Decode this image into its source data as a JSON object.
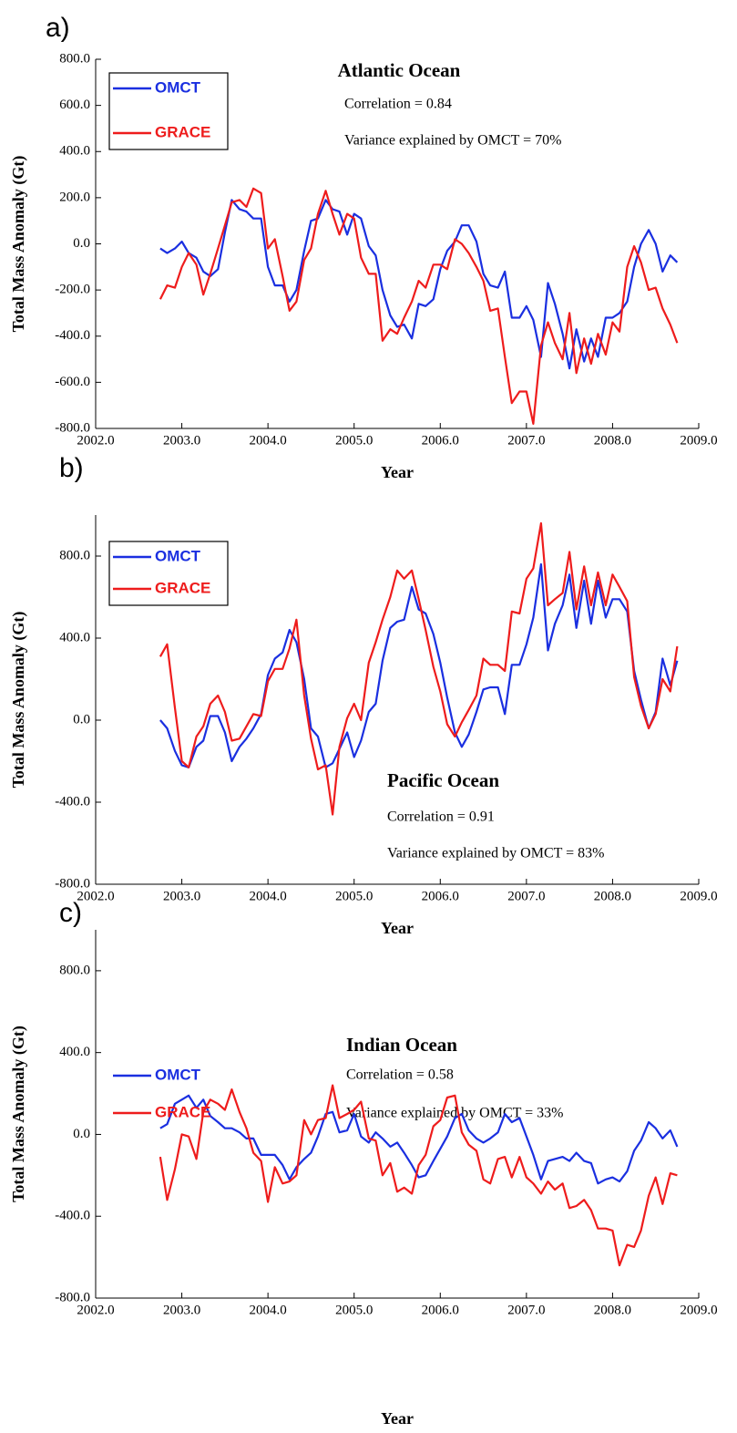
{
  "chart_data": [
    {
      "type": "line",
      "label": "a)",
      "title": "Atlantic Ocean",
      "annotations": [
        "Correlation = 0.84",
        "Variance explained by OMCT = 70%"
      ],
      "x_label": "Year",
      "y_label": "Total Mass Anomaly (Gt)",
      "xlim": [
        2002,
        2009
      ],
      "xticks": [
        {
          "value": 2002,
          "label": "2002.0"
        },
        {
          "value": 2003,
          "label": "2003.0"
        },
        {
          "value": 2004,
          "label": "2004.0"
        },
        {
          "value": 2005,
          "label": "2005.0"
        },
        {
          "value": 2006,
          "label": "2006.0"
        },
        {
          "value": 2007,
          "label": "2007.0"
        },
        {
          "value": 2008,
          "label": "2008.0"
        },
        {
          "value": 2009,
          "label": "2009.0"
        }
      ],
      "ylim": [
        -800,
        800
      ],
      "yticks": [
        {
          "value": -800,
          "label": "-800.0"
        },
        {
          "value": -600,
          "label": "-600.0"
        },
        {
          "value": -400,
          "label": "-400.0"
        },
        {
          "value": -200,
          "label": "-200.0"
        },
        {
          "value": 0,
          "label": "0.0"
        },
        {
          "value": 200,
          "label": "200.0"
        },
        {
          "value": 400,
          "label": "400.0"
        },
        {
          "value": 600,
          "label": "600.0"
        },
        {
          "value": 800,
          "label": "800.0"
        }
      ],
      "legend_box": true,
      "x": [
        2002.75,
        2002.83,
        2002.92,
        2003.0,
        2003.08,
        2003.17,
        2003.25,
        2003.33,
        2003.42,
        2003.5,
        2003.58,
        2003.67,
        2003.75,
        2003.83,
        2003.92,
        2004.0,
        2004.08,
        2004.17,
        2004.25,
        2004.33,
        2004.42,
        2004.5,
        2004.58,
        2004.67,
        2004.75,
        2004.83,
        2004.92,
        2005.0,
        2005.08,
        2005.17,
        2005.25,
        2005.33,
        2005.42,
        2005.5,
        2005.58,
        2005.67,
        2005.75,
        2005.83,
        2005.92,
        2006.0,
        2006.08,
        2006.17,
        2006.25,
        2006.33,
        2006.42,
        2006.5,
        2006.58,
        2006.67,
        2006.75,
        2006.83,
        2006.92,
        2007.0,
        2007.08,
        2007.17,
        2007.25,
        2007.33,
        2007.42,
        2007.5,
        2007.58,
        2007.67,
        2007.75,
        2007.83,
        2007.92,
        2008.0,
        2008.08,
        2008.17,
        2008.25,
        2008.33,
        2008.42,
        2008.5,
        2008.58,
        2008.67,
        2008.75
      ],
      "series": [
        {
          "name": "OMCT",
          "color": "#1a2fe0",
          "values": [
            -20,
            -40,
            -20,
            10,
            -40,
            -60,
            -120,
            -140,
            -110,
            50,
            190,
            150,
            140,
            110,
            110,
            -100,
            -180,
            -180,
            -250,
            -200,
            -30,
            100,
            110,
            190,
            150,
            140,
            40,
            130,
            110,
            -10,
            -50,
            -200,
            -310,
            -360,
            -350,
            -410,
            -260,
            -270,
            -240,
            -110,
            -30,
            10,
            80,
            80,
            10,
            -130,
            -180,
            -190,
            -120,
            -320,
            -320,
            -270,
            -330,
            -490,
            -170,
            -260,
            -390,
            -540,
            -370,
            -510,
            -410,
            -490,
            -320,
            -320,
            -300,
            -250,
            -100,
            0,
            60,
            0,
            -120,
            -50,
            -80
          ]
        },
        {
          "name": "GRACE",
          "color": "#ee1c1c",
          "values": [
            -240,
            -180,
            -190,
            -100,
            -40,
            -90,
            -220,
            -130,
            -20,
            80,
            180,
            190,
            160,
            240,
            220,
            -20,
            20,
            -140,
            -290,
            -250,
            -70,
            -20,
            130,
            230,
            130,
            40,
            130,
            110,
            -60,
            -130,
            -130,
            -420,
            -370,
            -390,
            -320,
            -250,
            -160,
            -190,
            -90,
            -90,
            -110,
            20,
            0,
            -40,
            -100,
            -160,
            -290,
            -280,
            -490,
            -690,
            -640,
            -640,
            -780,
            -440,
            -340,
            -430,
            -500,
            -300,
            -560,
            -410,
            -520,
            -390,
            -480,
            -340,
            -380,
            -100,
            -10,
            -80,
            -200,
            -190,
            -280,
            -350,
            -430
          ]
        }
      ]
    },
    {
      "type": "line",
      "label": "b)",
      "title": "Pacific Ocean",
      "annotations": [
        "Correlation = 0.91",
        "Variance explained by OMCT = 83%"
      ],
      "x_label": "Year",
      "y_label": "Total Mass Anomaly (Gt)",
      "xlim": [
        2002,
        2009
      ],
      "xticks": [
        {
          "value": 2002,
          "label": "2002.0"
        },
        {
          "value": 2003,
          "label": "2003.0"
        },
        {
          "value": 2004,
          "label": "2004.0"
        },
        {
          "value": 2005,
          "label": "2005.0"
        },
        {
          "value": 2006,
          "label": "2006.0"
        },
        {
          "value": 2007,
          "label": "2007.0"
        },
        {
          "value": 2008,
          "label": "2008.0"
        },
        {
          "value": 2009,
          "label": "2009.0"
        }
      ],
      "ylim": [
        -800,
        1000
      ],
      "yticks": [
        {
          "value": -800,
          "label": "-800.0"
        },
        {
          "value": -400,
          "label": "-400.0"
        },
        {
          "value": 0,
          "label": "0.0"
        },
        {
          "value": 400,
          "label": "400.0"
        },
        {
          "value": 800,
          "label": "800.0"
        }
      ],
      "legend_box": true,
      "x": [
        2002.75,
        2002.83,
        2002.92,
        2003.0,
        2003.08,
        2003.17,
        2003.25,
        2003.33,
        2003.42,
        2003.5,
        2003.58,
        2003.67,
        2003.75,
        2003.83,
        2003.92,
        2004.0,
        2004.08,
        2004.17,
        2004.25,
        2004.33,
        2004.42,
        2004.5,
        2004.58,
        2004.67,
        2004.75,
        2004.83,
        2004.92,
        2005.0,
        2005.08,
        2005.17,
        2005.25,
        2005.33,
        2005.42,
        2005.5,
        2005.58,
        2005.67,
        2005.75,
        2005.83,
        2005.92,
        2006.0,
        2006.08,
        2006.17,
        2006.25,
        2006.33,
        2006.42,
        2006.5,
        2006.58,
        2006.67,
        2006.75,
        2006.83,
        2006.92,
        2007.0,
        2007.08,
        2007.17,
        2007.25,
        2007.33,
        2007.42,
        2007.5,
        2007.58,
        2007.67,
        2007.75,
        2007.83,
        2007.92,
        2008.0,
        2008.08,
        2008.17,
        2008.25,
        2008.33,
        2008.42,
        2008.5,
        2008.58,
        2008.67,
        2008.75
      ],
      "series": [
        {
          "name": "OMCT",
          "color": "#1a2fe0",
          "values": [
            0,
            -40,
            -150,
            -220,
            -230,
            -130,
            -100,
            20,
            20,
            -60,
            -200,
            -130,
            -90,
            -40,
            30,
            220,
            300,
            330,
            440,
            380,
            200,
            -40,
            -80,
            -230,
            -210,
            -140,
            -60,
            -180,
            -100,
            40,
            80,
            290,
            450,
            480,
            490,
            650,
            540,
            520,
            420,
            280,
            110,
            -60,
            -130,
            -70,
            40,
            150,
            160,
            160,
            30,
            270,
            270,
            370,
            500,
            760,
            340,
            470,
            560,
            710,
            450,
            680,
            470,
            680,
            500,
            590,
            590,
            530,
            240,
            100,
            -40,
            40,
            300,
            170,
            290
          ]
        },
        {
          "name": "GRACE",
          "color": "#ee1c1c",
          "values": [
            310,
            370,
            60,
            -200,
            -230,
            -80,
            -30,
            80,
            120,
            40,
            -100,
            -90,
            -30,
            30,
            20,
            190,
            250,
            250,
            350,
            490,
            120,
            -90,
            -240,
            -220,
            -460,
            -130,
            10,
            80,
            0,
            280,
            380,
            490,
            600,
            730,
            690,
            730,
            590,
            440,
            260,
            140,
            -20,
            -80,
            -10,
            50,
            120,
            300,
            270,
            270,
            240,
            530,
            520,
            690,
            740,
            960,
            560,
            590,
            620,
            820,
            540,
            750,
            560,
            720,
            560,
            710,
            650,
            580,
            210,
            70,
            -40,
            30,
            200,
            140,
            360
          ]
        }
      ]
    },
    {
      "type": "line",
      "label": "c)",
      "title": "Indian Ocean",
      "annotations": [
        "Correlation = 0.58",
        "Variance explained by OMCT = 33%"
      ],
      "x_label": "Year",
      "y_label": "Total Mass Anomaly (Gt)",
      "xlim": [
        2002,
        2009
      ],
      "xticks": [
        {
          "value": 2002,
          "label": "2002.0"
        },
        {
          "value": 2003,
          "label": "2003.0"
        },
        {
          "value": 2004,
          "label": "2004.0"
        },
        {
          "value": 2005,
          "label": "2005.0"
        },
        {
          "value": 2006,
          "label": "2006.0"
        },
        {
          "value": 2007,
          "label": "2007.0"
        },
        {
          "value": 2008,
          "label": "2008.0"
        },
        {
          "value": 2009,
          "label": "2009.0"
        }
      ],
      "ylim": [
        -800,
        1000
      ],
      "yticks": [
        {
          "value": -800,
          "label": "-800.0"
        },
        {
          "value": -400,
          "label": "-400.0"
        },
        {
          "value": 0,
          "label": "0.0"
        },
        {
          "value": 400,
          "label": "400.0"
        },
        {
          "value": 800,
          "label": "800.0"
        }
      ],
      "legend_box": false,
      "x": [
        2002.75,
        2002.83,
        2002.92,
        2003.0,
        2003.08,
        2003.17,
        2003.25,
        2003.33,
        2003.42,
        2003.5,
        2003.58,
        2003.67,
        2003.75,
        2003.83,
        2003.92,
        2004.0,
        2004.08,
        2004.17,
        2004.25,
        2004.33,
        2004.42,
        2004.5,
        2004.58,
        2004.67,
        2004.75,
        2004.83,
        2004.92,
        2005.0,
        2005.08,
        2005.17,
        2005.25,
        2005.33,
        2005.42,
        2005.5,
        2005.58,
        2005.67,
        2005.75,
        2005.83,
        2005.92,
        2006.0,
        2006.08,
        2006.17,
        2006.25,
        2006.33,
        2006.42,
        2006.5,
        2006.58,
        2006.67,
        2006.75,
        2006.83,
        2006.92,
        2007.0,
        2007.08,
        2007.17,
        2007.25,
        2007.33,
        2007.42,
        2007.5,
        2007.58,
        2007.67,
        2007.75,
        2007.83,
        2007.92,
        2008.0,
        2008.08,
        2008.17,
        2008.25,
        2008.33,
        2008.42,
        2008.5,
        2008.58,
        2008.67,
        2008.75
      ],
      "series": [
        {
          "name": "OMCT",
          "color": "#1a2fe0",
          "values": [
            30,
            50,
            150,
            170,
            190,
            130,
            170,
            90,
            60,
            30,
            30,
            10,
            -20,
            -20,
            -100,
            -100,
            -100,
            -150,
            -220,
            -160,
            -120,
            -90,
            -10,
            100,
            110,
            10,
            20,
            100,
            -10,
            -40,
            10,
            -20,
            -60,
            -40,
            -90,
            -150,
            -210,
            -200,
            -130,
            -70,
            -10,
            80,
            100,
            20,
            -20,
            -40,
            -20,
            10,
            100,
            60,
            80,
            -10,
            -100,
            -220,
            -130,
            -120,
            -110,
            -130,
            -90,
            -130,
            -140,
            -240,
            -220,
            -210,
            -230,
            -180,
            -80,
            -30,
            60,
            30,
            -20,
            20,
            -60
          ]
        },
        {
          "name": "GRACE",
          "color": "#ee1c1c",
          "values": [
            -110,
            -320,
            -170,
            0,
            -10,
            -120,
            110,
            170,
            150,
            120,
            220,
            110,
            30,
            -90,
            -130,
            -330,
            -160,
            -240,
            -230,
            -200,
            70,
            0,
            70,
            80,
            240,
            80,
            100,
            120,
            160,
            -20,
            -30,
            -200,
            -140,
            -280,
            -260,
            -290,
            -150,
            -100,
            40,
            70,
            180,
            190,
            10,
            -50,
            -80,
            -220,
            -240,
            -120,
            -110,
            -210,
            -110,
            -210,
            -240,
            -290,
            -230,
            -270,
            -240,
            -360,
            -350,
            -320,
            -370,
            -460,
            -460,
            -470,
            -640,
            -540,
            -550,
            -470,
            -300,
            -210,
            -340,
            -190,
            -200
          ]
        }
      ]
    }
  ]
}
